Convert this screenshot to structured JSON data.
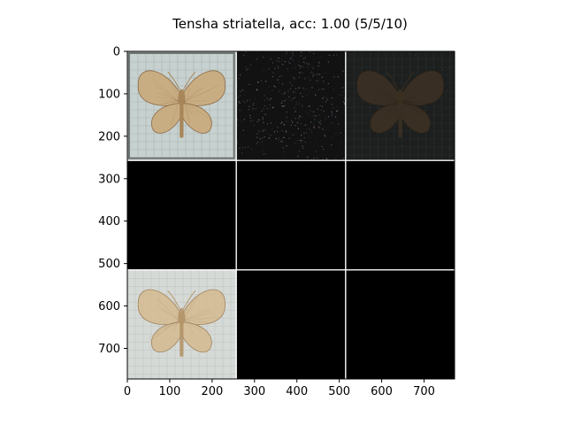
{
  "chart_data": {
    "type": "image-grid",
    "title": "Tensha striatella, acc: 1.00 (5/5/10)",
    "xlabel": "",
    "ylabel": "",
    "xlim": [
      0,
      772
    ],
    "ylim": [
      772,
      0
    ],
    "x_ticks": [
      0,
      100,
      200,
      300,
      400,
      500,
      600,
      700
    ],
    "y_ticks": [
      0,
      100,
      200,
      300,
      400,
      500,
      600,
      700
    ],
    "grid": {
      "rows": 3,
      "cols": 3,
      "cell_size": 256,
      "separator": 2,
      "separator_color": "#ffffff"
    },
    "cells": [
      {
        "row": 0,
        "col": 0,
        "content": "moth-photo",
        "tone": "#c9b28a"
      },
      {
        "row": 0,
        "col": 1,
        "content": "noise-dark",
        "tone": "#151515"
      },
      {
        "row": 0,
        "col": 2,
        "content": "moth-dark",
        "tone": "#2a2420"
      },
      {
        "row": 1,
        "col": 0,
        "content": "black",
        "tone": "#000000"
      },
      {
        "row": 1,
        "col": 1,
        "content": "black",
        "tone": "#000000"
      },
      {
        "row": 1,
        "col": 2,
        "content": "black",
        "tone": "#000000"
      },
      {
        "row": 2,
        "col": 0,
        "content": "moth-faded",
        "tone": "#d2bf9a"
      },
      {
        "row": 2,
        "col": 1,
        "content": "black",
        "tone": "#000000"
      },
      {
        "row": 2,
        "col": 2,
        "content": "black",
        "tone": "#000000"
      }
    ]
  }
}
